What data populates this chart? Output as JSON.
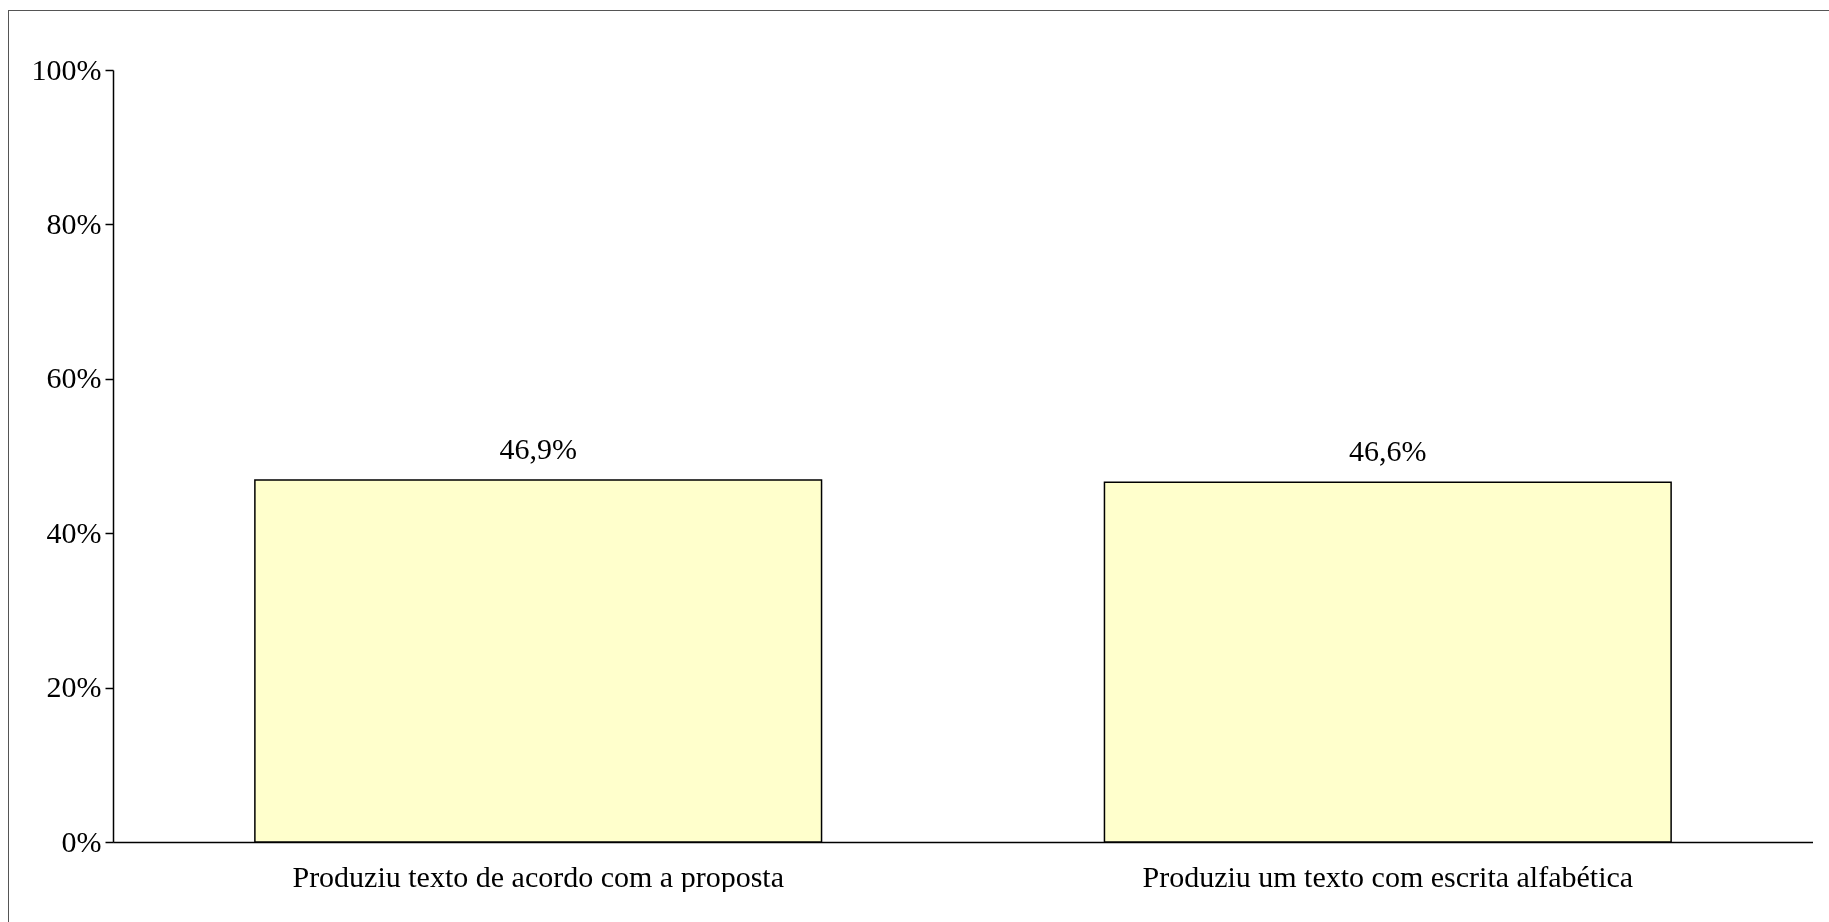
{
  "chart_data": {
    "type": "bar",
    "categories": [
      "Produziu texto de acordo com a proposta",
      "Produziu um texto com escrita alfabética"
    ],
    "values": [
      46.9,
      46.6
    ],
    "value_labels": [
      "46,9%",
      "46,6%"
    ],
    "color": "#ffffcc",
    "ylim": [
      0,
      100
    ],
    "yticks": [
      {
        "value": 0,
        "label": "0%"
      },
      {
        "value": 20,
        "label": "20%"
      },
      {
        "value": 40,
        "label": "40%"
      },
      {
        "value": 60,
        "label": "60%"
      },
      {
        "value": 80,
        "label": "80%"
      },
      {
        "value": 100,
        "label": "100%"
      }
    ],
    "grid": false
  }
}
